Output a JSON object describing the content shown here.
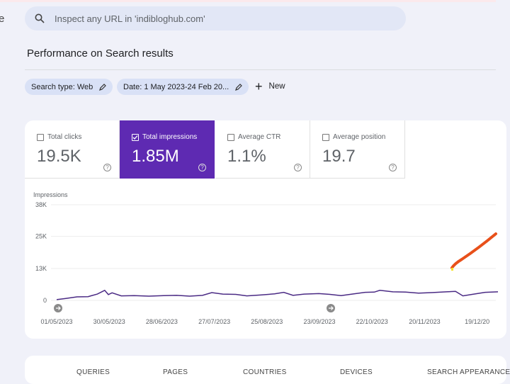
{
  "sidebar_fragment": "e",
  "search": {
    "placeholder": "Inspect any URL in 'indibloghub.com'"
  },
  "page_title": "Performance on Search results",
  "filters": {
    "search_type": "Search type: Web",
    "date": "Date: 1 May 2023-24 Feb 20...",
    "new_label": "New"
  },
  "metrics": [
    {
      "label": "Total clicks",
      "value": "19.5K",
      "checked": false
    },
    {
      "label": "Total impressions",
      "value": "1.85M",
      "checked": true
    },
    {
      "label": "Average CTR",
      "value": "1.1%",
      "checked": false
    },
    {
      "label": "Average position",
      "value": "19.7",
      "checked": false
    }
  ],
  "colors": {
    "accent": "#5e2ab2",
    "line": "#4a2a84",
    "annotation": "#e8501a"
  },
  "chart_data": {
    "type": "line",
    "ylabel": "Impressions",
    "ylim": [
      0,
      38000
    ],
    "yticks": [
      "38K",
      "25K",
      "13K",
      "0"
    ],
    "xticks": [
      "01/05/2023",
      "30/05/2023",
      "28/06/2023",
      "27/07/2023",
      "25/08/2023",
      "23/09/2023",
      "22/10/2023",
      "20/11/2023",
      "19/12/20"
    ],
    "grid": true,
    "series": [
      {
        "x": [
          "2023-05-01",
          "2023-05-06",
          "2023-05-12",
          "2023-05-18",
          "2023-05-23",
          "2023-05-27",
          "2023-05-29",
          "2023-05-31",
          "2023-06-05",
          "2023-06-12",
          "2023-06-20",
          "2023-06-28",
          "2023-07-05",
          "2023-07-12",
          "2023-07-19",
          "2023-07-24",
          "2023-07-30",
          "2023-08-06",
          "2023-08-12",
          "2023-08-20",
          "2023-08-27",
          "2023-09-01",
          "2023-09-06",
          "2023-09-12",
          "2023-09-20",
          "2023-09-26",
          "2023-10-02",
          "2023-10-09",
          "2023-10-15",
          "2023-10-20",
          "2023-10-23",
          "2023-10-30",
          "2023-11-06",
          "2023-11-13",
          "2023-11-20",
          "2023-11-28",
          "2023-12-03",
          "2023-12-07",
          "2023-12-12",
          "2023-12-19",
          "2023-12-26"
        ],
        "y": [
          300,
          800,
          1400,
          1500,
          2500,
          4000,
          2300,
          3000,
          1800,
          1900,
          1700,
          1900,
          2000,
          1700,
          2000,
          3100,
          2500,
          2400,
          1800,
          2200,
          2600,
          3200,
          2000,
          2500,
          2700,
          2400,
          1900,
          2600,
          3200,
          3300,
          4000,
          3400,
          3300,
          2900,
          3100,
          3400,
          3600,
          1800,
          2400,
          3200,
          3400
        ]
      }
    ]
  },
  "tabs": [
    "QUERIES",
    "PAGES",
    "COUNTRIES",
    "DEVICES",
    "SEARCH APPEARANCE"
  ]
}
